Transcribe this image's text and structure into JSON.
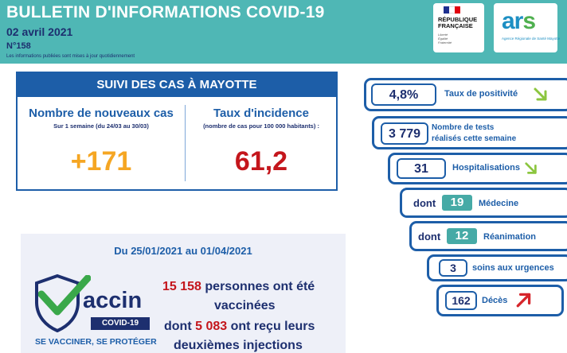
{
  "header": {
    "title": "BULLETIN D'INFORMATIONS COVID-19",
    "date": "02 avril 2021",
    "number": "N°158",
    "note": "Les informations publiées sont mises à jour quotidiennement",
    "rf_logo": {
      "line1": "RÉPUBLIQUE",
      "line2": "FRANÇAISE",
      "motto1": "Liberté",
      "motto2": "Égalité",
      "motto3": "Fraternité"
    },
    "ars_logo": {
      "word_a": "ar",
      "word_s": "s",
      "subtitle": "Agence Régionale de Santé Mayotte"
    }
  },
  "suivi": {
    "title": "SUIVI DES CAS À MAYOTTE",
    "new_cases": {
      "label": "Nombre de nouveaux cas",
      "sub": "Sur 1 semaine (du 24/03 au 30/03)",
      "value": "+171"
    },
    "incidence": {
      "label": "Taux d'incidence",
      "sub": "(nombre de cas pour 100 000 habitants) :",
      "value": "61,2"
    }
  },
  "stats": {
    "positivity": {
      "value": "4,8%",
      "label": "Taux de positivité",
      "trend": "down"
    },
    "tests": {
      "value": "3 779",
      "label_line1": "Nombre de tests",
      "label_line2": "réalisés cette semaine"
    },
    "hospitalisations": {
      "value": "31",
      "label": "Hospitalisations",
      "trend": "down"
    },
    "medecine": {
      "prefix": "dont",
      "value": "19",
      "label": "Médecine"
    },
    "reanimation": {
      "prefix": "dont",
      "value": "12",
      "label": "Réanimation"
    },
    "urgences": {
      "value": "3",
      "label": "soins aux urgences"
    },
    "deces": {
      "value": "162",
      "label": "Décès",
      "trend": "up"
    }
  },
  "vaccination": {
    "period": "Du 25/01/2021 au 01/04/2021",
    "logo": {
      "word": "accin",
      "badge": "COVID-19",
      "slogan": "SE VACCINER, SE PROTÉGER"
    },
    "vaccinated_value": "15 158",
    "vaccinated_text1": "personnes ont été",
    "vaccinated_text2": "vaccinées",
    "second_prefix": "dont",
    "second_value": "5 083",
    "second_text1": "ont reçu leurs",
    "second_text2": "deuxièmes injections"
  },
  "colors": {
    "header_bg": "#4fb7b5",
    "navy": "#1d2f6f",
    "blue": "#1d5ea8",
    "teal": "#46aaa6",
    "orange": "#f5a623",
    "red": "#c4161c",
    "trend_down": "#8cc63f",
    "trend_up": "#d6252b",
    "panel_bg": "#eef0f8"
  },
  "icons": {
    "down": "arrow-down-right-icon",
    "up": "arrow-up-right-icon",
    "check": "checkmark-icon",
    "shield": "shield-icon"
  }
}
